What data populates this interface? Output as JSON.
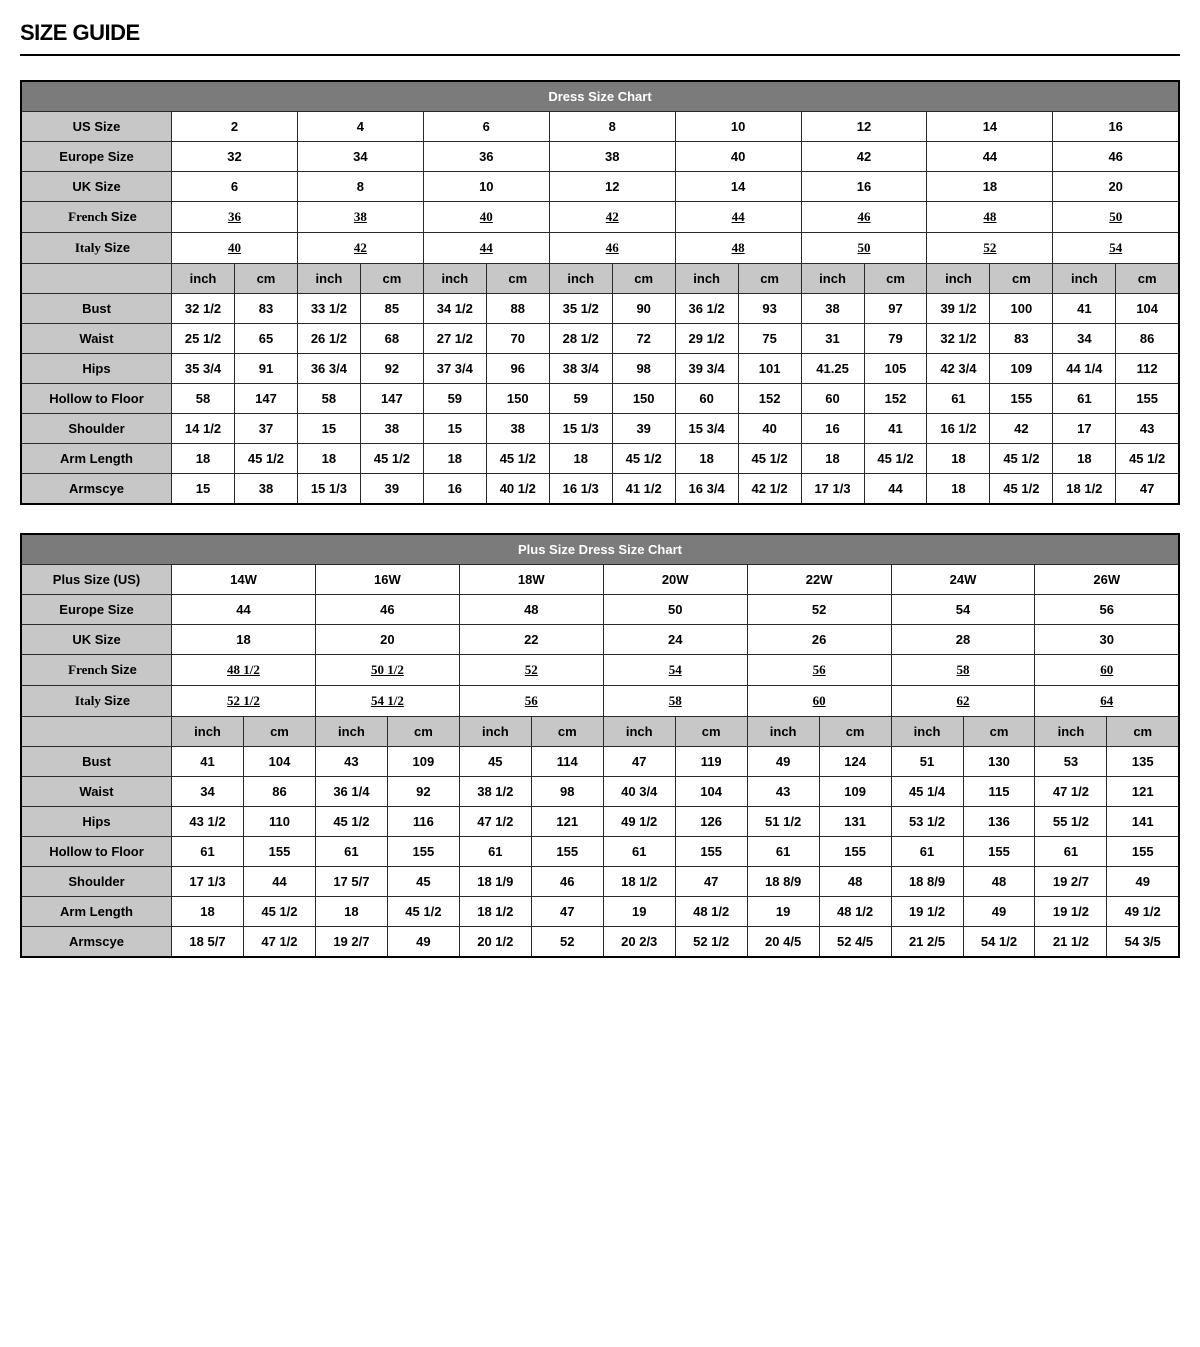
{
  "page_title": "SIZE GUIDE",
  "colors": {
    "title_bar_bg": "#7b7b7b",
    "title_bar_text": "#ffffff",
    "label_bg": "#c7c7c7",
    "data_bg": "#ffffff",
    "border": "#2a2a2a",
    "outer_border": "#000000"
  },
  "typography": {
    "body_font": "Arial",
    "serif_font": "Georgia",
    "page_title_size_pt": 17,
    "cell_font_size_pt": 10
  },
  "chart1": {
    "title": "Dress Size Chart",
    "size_rows": [
      {
        "label": "US Size",
        "values": [
          "2",
          "4",
          "6",
          "8",
          "10",
          "12",
          "14",
          "16"
        ],
        "serif": false
      },
      {
        "label": "Europe Size",
        "values": [
          "32",
          "34",
          "36",
          "38",
          "40",
          "42",
          "44",
          "46"
        ],
        "serif": false
      },
      {
        "label": "UK Size",
        "values": [
          "6",
          "8",
          "10",
          "12",
          "14",
          "16",
          "18",
          "20"
        ],
        "serif": false
      },
      {
        "label_prefix": "French",
        "label_suffix": "Size",
        "values": [
          "36",
          "38",
          "40",
          "42",
          "44",
          "46",
          "48",
          "50"
        ],
        "serif": true
      },
      {
        "label_prefix": "Italy",
        "label_suffix": "Size",
        "values": [
          "40",
          "42",
          "44",
          "46",
          "48",
          "50",
          "52",
          "54"
        ],
        "serif": true
      }
    ],
    "unit_inch": "inch",
    "unit_cm": "cm",
    "num_sizes": 8,
    "measurement_rows": [
      {
        "label": "Bust",
        "vals": [
          "32 1/2",
          "83",
          "33 1/2",
          "85",
          "34 1/2",
          "88",
          "35 1/2",
          "90",
          "36 1/2",
          "93",
          "38",
          "97",
          "39 1/2",
          "100",
          "41",
          "104"
        ]
      },
      {
        "label": "Waist",
        "vals": [
          "25 1/2",
          "65",
          "26 1/2",
          "68",
          "27 1/2",
          "70",
          "28 1/2",
          "72",
          "29 1/2",
          "75",
          "31",
          "79",
          "32 1/2",
          "83",
          "34",
          "86"
        ]
      },
      {
        "label": "Hips",
        "vals": [
          "35 3/4",
          "91",
          "36 3/4",
          "92",
          "37 3/4",
          "96",
          "38 3/4",
          "98",
          "39 3/4",
          "101",
          "41.25",
          "105",
          "42 3/4",
          "109",
          "44 1/4",
          "112"
        ]
      },
      {
        "label": "Hollow to Floor",
        "vals": [
          "58",
          "147",
          "58",
          "147",
          "59",
          "150",
          "59",
          "150",
          "60",
          "152",
          "60",
          "152",
          "61",
          "155",
          "61",
          "155"
        ]
      },
      {
        "label": "Shoulder",
        "vals": [
          "14 1/2",
          "37",
          "15",
          "38",
          "15",
          "38",
          "15 1/3",
          "39",
          "15 3/4",
          "40",
          "16",
          "41",
          "16 1/2",
          "42",
          "17",
          "43"
        ]
      },
      {
        "label": "Arm Length",
        "vals": [
          "18",
          "45 1/2",
          "18",
          "45 1/2",
          "18",
          "45 1/2",
          "18",
          "45 1/2",
          "18",
          "45 1/2",
          "18",
          "45 1/2",
          "18",
          "45 1/2",
          "18",
          "45 1/2"
        ]
      },
      {
        "label": "Armscye",
        "vals": [
          "15",
          "38",
          "15 1/3",
          "39",
          "16",
          "40 1/2",
          "16 1/3",
          "41 1/2",
          "16 3/4",
          "42 1/2",
          "17 1/3",
          "44",
          "18",
          "45 1/2",
          "18 1/2",
          "47"
        ]
      }
    ]
  },
  "chart2": {
    "title": "Plus Size Dress Size Chart",
    "size_rows": [
      {
        "label": "Plus Size (US)",
        "values": [
          "14W",
          "16W",
          "18W",
          "20W",
          "22W",
          "24W",
          "26W"
        ],
        "serif": false
      },
      {
        "label": "Europe Size",
        "values": [
          "44",
          "46",
          "48",
          "50",
          "52",
          "54",
          "56"
        ],
        "serif": false
      },
      {
        "label": "UK Size",
        "values": [
          "18",
          "20",
          "22",
          "24",
          "26",
          "28",
          "30"
        ],
        "serif": false
      },
      {
        "label_prefix": "French",
        "label_suffix": "Size",
        "values": [
          "48 1/2",
          "50 1/2",
          "52",
          "54",
          "56",
          "58",
          "60"
        ],
        "serif": true
      },
      {
        "label_prefix": "Italy",
        "label_suffix": "Size",
        "values": [
          "52 1/2",
          "54 1/2",
          "56",
          "58",
          "60",
          "62",
          "64"
        ],
        "serif": true
      }
    ],
    "unit_inch": "inch",
    "unit_cm": "cm",
    "num_sizes": 7,
    "measurement_rows": [
      {
        "label": "Bust",
        "vals": [
          "41",
          "104",
          "43",
          "109",
          "45",
          "114",
          "47",
          "119",
          "49",
          "124",
          "51",
          "130",
          "53",
          "135"
        ]
      },
      {
        "label": "Waist",
        "vals": [
          "34",
          "86",
          "36 1/4",
          "92",
          "38 1/2",
          "98",
          "40 3/4",
          "104",
          "43",
          "109",
          "45 1/4",
          "115",
          "47 1/2",
          "121"
        ]
      },
      {
        "label": "Hips",
        "vals": [
          "43 1/2",
          "110",
          "45 1/2",
          "116",
          "47 1/2",
          "121",
          "49 1/2",
          "126",
          "51 1/2",
          "131",
          "53 1/2",
          "136",
          "55 1/2",
          "141"
        ]
      },
      {
        "label": "Hollow to Floor",
        "vals": [
          "61",
          "155",
          "61",
          "155",
          "61",
          "155",
          "61",
          "155",
          "61",
          "155",
          "61",
          "155",
          "61",
          "155"
        ]
      },
      {
        "label": "Shoulder",
        "vals": [
          "17 1/3",
          "44",
          "17 5/7",
          "45",
          "18 1/9",
          "46",
          "18 1/2",
          "47",
          "18 8/9",
          "48",
          "18 8/9",
          "48",
          "19 2/7",
          "49"
        ]
      },
      {
        "label": "Arm Length",
        "vals": [
          "18",
          "45 1/2",
          "18",
          "45 1/2",
          "18 1/2",
          "47",
          "19",
          "48 1/2",
          "19",
          "48 1/2",
          "19 1/2",
          "49",
          "19 1/2",
          "49 1/2"
        ]
      },
      {
        "label": "Armscye",
        "vals": [
          "18 5/7",
          "47 1/2",
          "19 2/7",
          "49",
          "20 1/2",
          "52",
          "20 2/3",
          "52 1/2",
          "20 4/5",
          "52 4/5",
          "21 2/5",
          "54 1/2",
          "21 1/2",
          "54 3/5"
        ]
      }
    ]
  }
}
